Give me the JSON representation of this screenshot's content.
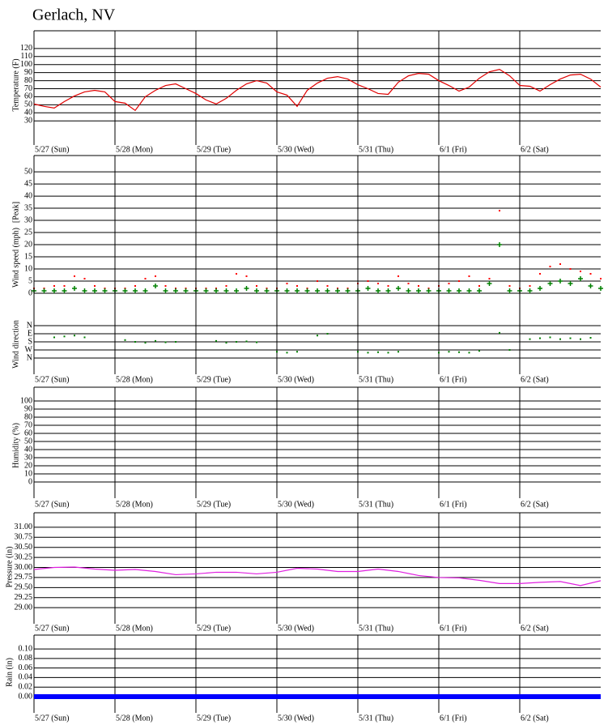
{
  "title": "Gerlach, NV",
  "chart_data": [
    {
      "type": "line",
      "ylabel": "Temperature (F)",
      "color": "#e00000",
      "linewidth": 1.2,
      "xlim": [
        0,
        7
      ],
      "ylim": [
        0,
        142
      ],
      "yticks": [
        30,
        40,
        50,
        60,
        70,
        80,
        90,
        100,
        110,
        120
      ],
      "xticks": [
        {
          "value": 0,
          "label": "5/27 (Sun)"
        },
        {
          "value": 1,
          "label": "5/28 (Mon)"
        },
        {
          "value": 2,
          "label": "5/29 (Tue)"
        },
        {
          "value": 3,
          "label": "5/30 (Wed)"
        },
        {
          "value": 4,
          "label": "5/31 (Thu)"
        },
        {
          "value": 5,
          "label": "6/1 (Fri)"
        },
        {
          "value": 6,
          "label": "6/2 (Sat)"
        }
      ],
      "x": [
        0,
        0.125,
        0.25,
        0.375,
        0.5,
        0.625,
        0.75,
        0.875,
        1,
        1.125,
        1.25,
        1.375,
        1.5,
        1.625,
        1.75,
        1.875,
        2,
        2.125,
        2.25,
        2.375,
        2.5,
        2.625,
        2.75,
        2.875,
        3,
        3.125,
        3.25,
        3.375,
        3.5,
        3.625,
        3.75,
        3.875,
        4,
        4.125,
        4.25,
        4.375,
        4.5,
        4.625,
        4.75,
        4.875,
        5,
        5.125,
        5.25,
        5.375,
        5.5,
        5.625,
        5.75,
        5.875,
        6,
        6.125,
        6.25,
        6.375,
        6.5,
        6.625,
        6.75,
        6.875,
        7
      ],
      "values": [
        51,
        48,
        46,
        54,
        61,
        66,
        68,
        66,
        54,
        52,
        43,
        60,
        68,
        74,
        76,
        70,
        64,
        56,
        51,
        58,
        68,
        76,
        80,
        77,
        66,
        62,
        48,
        68,
        77,
        83,
        85,
        82,
        75,
        70,
        64,
        63,
        78,
        86,
        89,
        88,
        80,
        74,
        67,
        72,
        83,
        91,
        94,
        86,
        74,
        73,
        67,
        75,
        82,
        87,
        88,
        82,
        72
      ]
    },
    {
      "type": "scatter",
      "ylabel": "Wind speed (mph)",
      "xlim": [
        0,
        7
      ],
      "ylim": [
        0,
        56.7
      ],
      "yticks": [
        0,
        5,
        10,
        15,
        20,
        25,
        30,
        35,
        40,
        45,
        50
      ],
      "x": [
        0,
        0.125,
        0.25,
        0.375,
        0.5,
        0.625,
        0.75,
        0.875,
        1,
        1.125,
        1.25,
        1.375,
        1.5,
        1.625,
        1.75,
        1.875,
        2,
        2.125,
        2.25,
        2.375,
        2.5,
        2.625,
        2.75,
        2.875,
        3,
        3.125,
        3.25,
        3.375,
        3.5,
        3.625,
        3.75,
        3.875,
        4,
        4.125,
        4.25,
        4.375,
        4.5,
        4.625,
        4.75,
        4.875,
        5,
        5.125,
        5.25,
        5.375,
        5.5,
        5.625,
        5.75,
        5.875,
        6,
        6.125,
        6.25,
        6.375,
        6.5,
        6.625,
        6.75,
        6.875,
        7
      ],
      "series": [
        {
          "name": "[Peak]",
          "color": "#ff0000",
          "marker": "dot",
          "values": [
            2,
            2,
            3,
            3,
            7,
            6,
            3,
            2,
            2,
            2,
            3,
            6,
            7,
            3,
            2,
            2,
            2,
            2,
            2,
            3,
            8,
            7,
            3,
            2,
            2,
            4,
            3,
            2,
            5,
            3,
            2,
            2,
            4,
            5,
            4,
            3,
            7,
            4,
            3,
            2,
            3,
            4,
            5,
            7,
            3,
            6,
            34,
            3,
            2,
            3,
            8,
            11,
            12,
            10,
            9,
            8,
            6
          ]
        },
        {
          "color": "#008000",
          "marker": "plus",
          "values": [
            1,
            1,
            1,
            1,
            2,
            1,
            1,
            1,
            1,
            1,
            1,
            1,
            3,
            1,
            1,
            1,
            1,
            1,
            1,
            1,
            1,
            2,
            1,
            1,
            1,
            1,
            1,
            1,
            1,
            1,
            1,
            1,
            1,
            2,
            1,
            1,
            2,
            1,
            1,
            1,
            1,
            1,
            1,
            1,
            1,
            4,
            20,
            1,
            1,
            1,
            2,
            4,
            5,
            4,
            6,
            3,
            2
          ]
        }
      ]
    },
    {
      "type": "scatter",
      "ylabel": "Wind direction",
      "color": "#008000",
      "marker": "dot",
      "xlim": [
        0,
        7
      ],
      "ylim": [
        540,
        -180
      ],
      "yticks": [
        {
          "value": 0,
          "label": "N"
        },
        {
          "value": 90,
          "label": "E"
        },
        {
          "value": 180,
          "label": "S"
        },
        {
          "value": 270,
          "label": "W"
        },
        {
          "value": 360,
          "label": "N"
        }
      ],
      "xticks": [
        {
          "value": 0,
          "label": "5/27 (Sun)"
        },
        {
          "value": 1,
          "label": "5/28 (Mon)"
        },
        {
          "value": 2,
          "label": "5/29 (Tue)"
        },
        {
          "value": 3,
          "label": "5/30 (Wed)"
        },
        {
          "value": 4,
          "label": "5/31 (Thu)"
        },
        {
          "value": 5,
          "label": "6/1 (Fri)"
        },
        {
          "value": 6,
          "label": "6/2 (Sat)"
        }
      ],
      "x": [
        0,
        0.125,
        0.25,
        0.375,
        0.5,
        0.625,
        0.75,
        0.875,
        1,
        1.125,
        1.25,
        1.375,
        1.5,
        1.625,
        1.75,
        1.875,
        2,
        2.125,
        2.25,
        2.375,
        2.5,
        2.625,
        2.75,
        2.875,
        3,
        3.125,
        3.25,
        3.375,
        3.5,
        3.625,
        3.75,
        3.875,
        4,
        4.125,
        4.25,
        4.375,
        4.5,
        4.625,
        4.75,
        4.875,
        5,
        5.125,
        5.25,
        5.375,
        5.5,
        5.625,
        5.75,
        5.875,
        6,
        6.125,
        6.25,
        6.375,
        6.5,
        6.625,
        6.75,
        6.875,
        7
      ],
      "values": [
        null,
        null,
        130,
        120,
        110,
        130,
        null,
        null,
        null,
        160,
        180,
        190,
        170,
        185,
        180,
        null,
        null,
        null,
        170,
        190,
        180,
        175,
        185,
        null,
        290,
        300,
        290,
        null,
        110,
        90,
        null,
        null,
        290,
        300,
        295,
        300,
        290,
        null,
        null,
        null,
        300,
        290,
        295,
        300,
        280,
        null,
        80,
        270,
        null,
        150,
        140,
        130,
        150,
        140,
        150,
        135,
        null
      ]
    },
    {
      "type": "line",
      "ylabel": "Humidity (%)",
      "xlim": [
        0,
        7
      ],
      "ylim": [
        -20,
        117
      ],
      "yticks": [
        0,
        10,
        20,
        30,
        40,
        50,
        60,
        70,
        80,
        90,
        100
      ],
      "xticks": [
        {
          "value": 0,
          "label": "5/27 (Sun)"
        },
        {
          "value": 1,
          "label": "5/28 (Mon)"
        },
        {
          "value": 2,
          "label": "5/29 (Tue)"
        },
        {
          "value": 3,
          "label": "5/30 (Wed)"
        },
        {
          "value": 4,
          "label": "5/31 (Thu)"
        },
        {
          "value": 5,
          "label": "6/1 (Fri)"
        },
        {
          "value": 6,
          "label": "6/2 (Sat)"
        }
      ]
    },
    {
      "type": "line",
      "ylabel": "Pressure (in)",
      "color": "#e020e0",
      "linewidth": 1.2,
      "xlim": [
        0,
        7
      ],
      "ylim": [
        28.6,
        31.36
      ],
      "yticks": [
        {
          "value": 29,
          "label": "29.00"
        },
        29.25,
        {
          "value": 29.5,
          "label": "29.50"
        },
        29.75,
        {
          "value": 30,
          "label": "30.00"
        },
        30.25,
        {
          "value": 30.5,
          "label": "30.50"
        },
        30.75,
        {
          "value": 31,
          "label": "31.00"
        }
      ],
      "xticks": [
        {
          "value": 0,
          "label": "5/27 (Sun)"
        },
        {
          "value": 1,
          "label": "5/28 (Mon)"
        },
        {
          "value": 2,
          "label": "5/29 (Tue)"
        },
        {
          "value": 3,
          "label": "5/30 (Wed)"
        },
        {
          "value": 4,
          "label": "5/31 (Thu)"
        },
        {
          "value": 5,
          "label": "6/1 (Fri)"
        },
        {
          "value": 6,
          "label": "6/2 (Sat)"
        }
      ],
      "x": [
        0,
        0.25,
        0.5,
        0.75,
        1,
        1.25,
        1.5,
        1.75,
        2,
        2.25,
        2.5,
        2.75,
        3,
        3.25,
        3.5,
        3.75,
        4,
        4.25,
        4.5,
        4.75,
        5,
        5.25,
        5.5,
        5.75,
        6,
        6.25,
        6.5,
        6.75,
        7
      ],
      "values": [
        29.95,
        30.0,
        30.01,
        29.96,
        29.93,
        29.95,
        29.9,
        29.82,
        29.84,
        29.88,
        29.88,
        29.84,
        29.88,
        29.98,
        29.96,
        29.9,
        29.9,
        29.96,
        29.9,
        29.8,
        29.75,
        29.74,
        29.68,
        29.6,
        29.6,
        29.63,
        29.65,
        29.55,
        29.67
      ]
    },
    {
      "type": "line",
      "ylabel": "Rain (in)",
      "color": "#0000ff",
      "linewidth": 6,
      "xlim": [
        0,
        7
      ],
      "ylim": [
        -0.034,
        0.129
      ],
      "yticks": [
        {
          "value": 0,
          "label": "0.00"
        },
        0.02,
        0.04,
        0.06,
        0.08,
        {
          "value": 0.1,
          "label": "0.10"
        }
      ],
      "xticks": [
        {
          "value": 0,
          "label": "5/27 (Sun)"
        },
        {
          "value": 1,
          "label": "5/28 (Mon)"
        },
        {
          "value": 2,
          "label": "5/29 (Tue)"
        },
        {
          "value": 3,
          "label": "5/30 (Wed)"
        },
        {
          "value": 4,
          "label": "5/31 (Thu)"
        },
        {
          "value": 5,
          "label": "6/1 (Fri)"
        },
        {
          "value": 6,
          "label": "6/2 (Sat)"
        }
      ],
      "x": [
        0,
        7
      ],
      "values": [
        0,
        0
      ]
    }
  ]
}
